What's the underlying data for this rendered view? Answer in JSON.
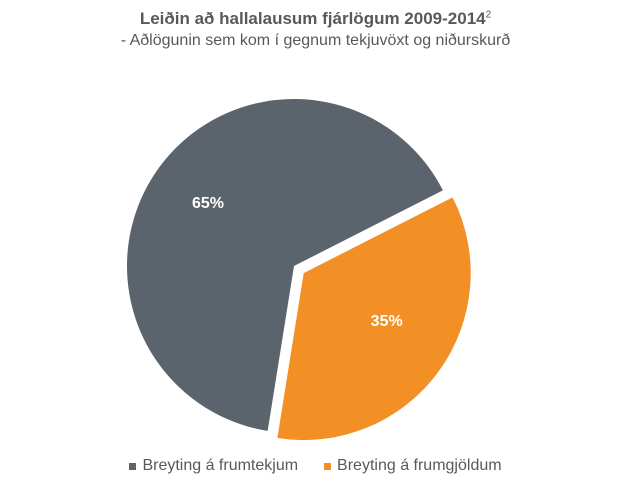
{
  "chart_data": {
    "type": "pie",
    "title": "Leiðin að hallalausum fjárlögum 2009-2014",
    "title_superscript": "2",
    "subtitle": "- Aðlögunin sem kom í gegnum tekjuvöxt og niðurskurð",
    "slices": [
      {
        "label": "Breyting á frumtekjum",
        "value": 65,
        "display": "65%",
        "color": "#5b636c",
        "exploded": false
      },
      {
        "label": "Breyting á frumgjöldum",
        "value": 35,
        "display": "35%",
        "color": "#f39025",
        "exploded": true
      }
    ],
    "legend_position": "bottom"
  }
}
